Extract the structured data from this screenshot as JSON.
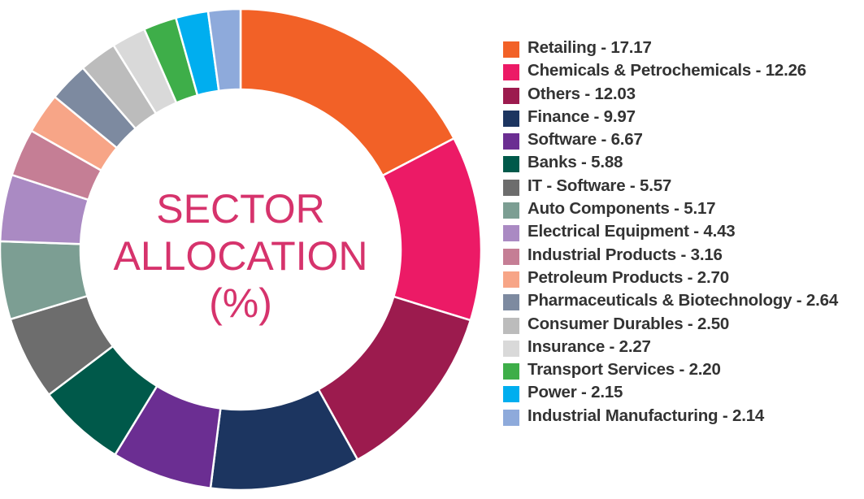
{
  "chart_data": {
    "type": "pie",
    "donut": true,
    "center_title": [
      "SECTOR",
      "ALLOCATION",
      "(%)"
    ],
    "legend_placement": "right",
    "start_angle": "top, clockwise",
    "slices": [
      {
        "label": "Retailing - 17.17",
        "value": 17.17,
        "color": "#f26127"
      },
      {
        "label": "Chemicals & Petrochemicals - 12.26",
        "value": 12.26,
        "color": "#ec1a66"
      },
      {
        "label": "Others - 12.03",
        "value": 12.03,
        "color": "#9c1b4e"
      },
      {
        "label": "Finance - 9.97",
        "value": 9.97,
        "color": "#1c3560"
      },
      {
        "label": "Software - 6.67",
        "value": 6.67,
        "color": "#6b2e92"
      },
      {
        "label": "Banks - 5.88",
        "value": 5.88,
        "color": "#00594a"
      },
      {
        "label": "IT - Software - 5.57",
        "value": 5.57,
        "color": "#6d6d6d"
      },
      {
        "label": "Auto Components - 5.17",
        "value": 5.17,
        "color": "#7c9e93"
      },
      {
        "label": "Electrical Equipment - 4.43",
        "value": 4.43,
        "color": "#aa8ac3"
      },
      {
        "label": "Industrial Products - 3.16",
        "value": 3.16,
        "color": "#c57e95"
      },
      {
        "label": "Petroleum Products - 2.70",
        "value": 2.7,
        "color": "#f7a587"
      },
      {
        "label": "Pharmaceuticals & Biotechnology - 2.64",
        "value": 2.64,
        "color": "#7d8aa0"
      },
      {
        "label": "Consumer Durables - 2.50",
        "value": 2.5,
        "color": "#bcbcbc"
      },
      {
        "label": "Insurance - 2.27",
        "value": 2.27,
        "color": "#d9d9d9"
      },
      {
        "label": "Transport Services - 2.20",
        "value": 2.2,
        "color": "#3eae49"
      },
      {
        "label": "Power - 2.15",
        "value": 2.15,
        "color": "#00aeef"
      },
      {
        "label": "Industrial Manufacturing - 2.14",
        "value": 2.14,
        "color": "#8eaadb"
      }
    ]
  }
}
